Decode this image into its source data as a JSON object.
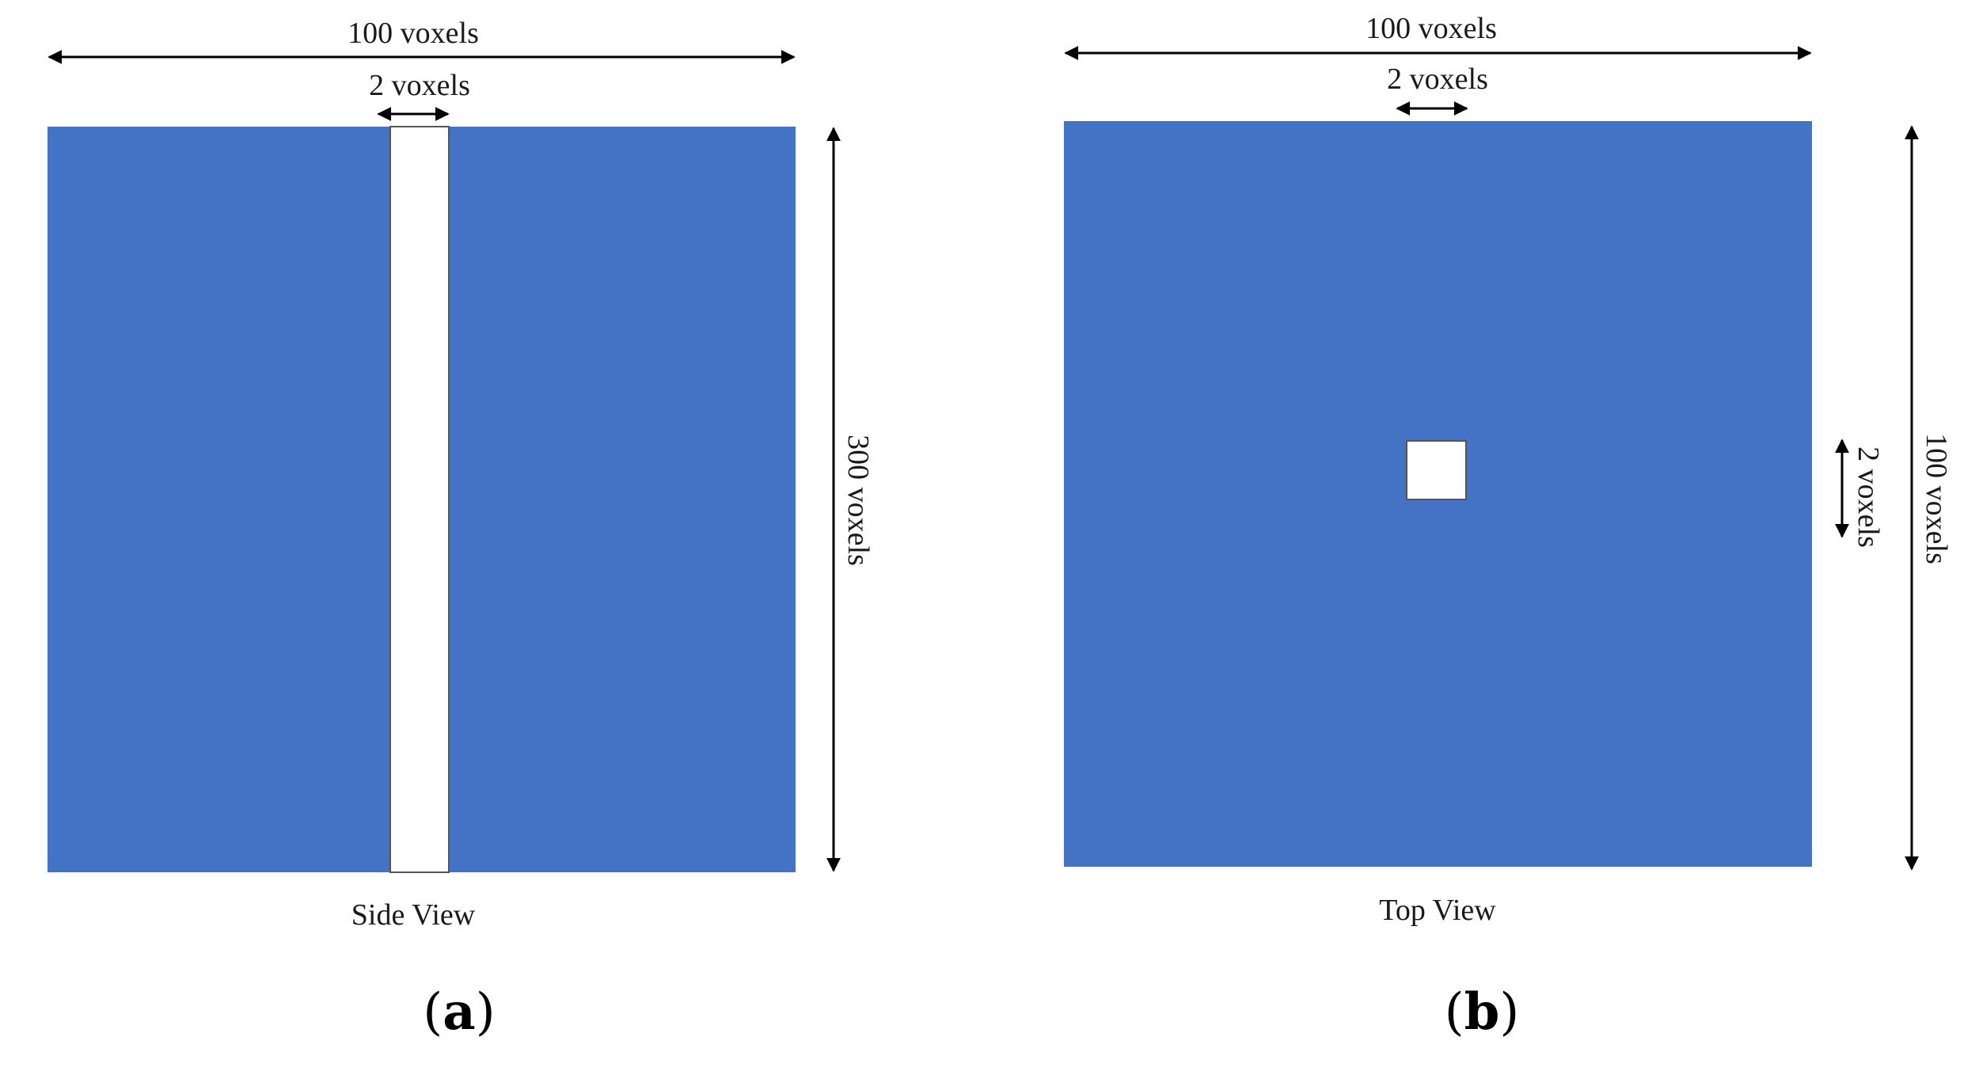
{
  "colors": {
    "block": "#4472c4",
    "hole": "#ffffff",
    "hole_border": "#555555",
    "text": "#1a1a1a",
    "arrow": "#000000"
  },
  "panels": [
    {
      "label": "a",
      "caption": "Side View",
      "width_label": "100 voxels",
      "hole_width_label": "2 voxels",
      "height_label": "300 voxels"
    },
    {
      "label": "b",
      "caption": "Top View",
      "width_label": "100 voxels",
      "hole_width_label": "2 voxels",
      "hole_height_label": "2 voxels",
      "height_label": "100 voxels"
    }
  ]
}
